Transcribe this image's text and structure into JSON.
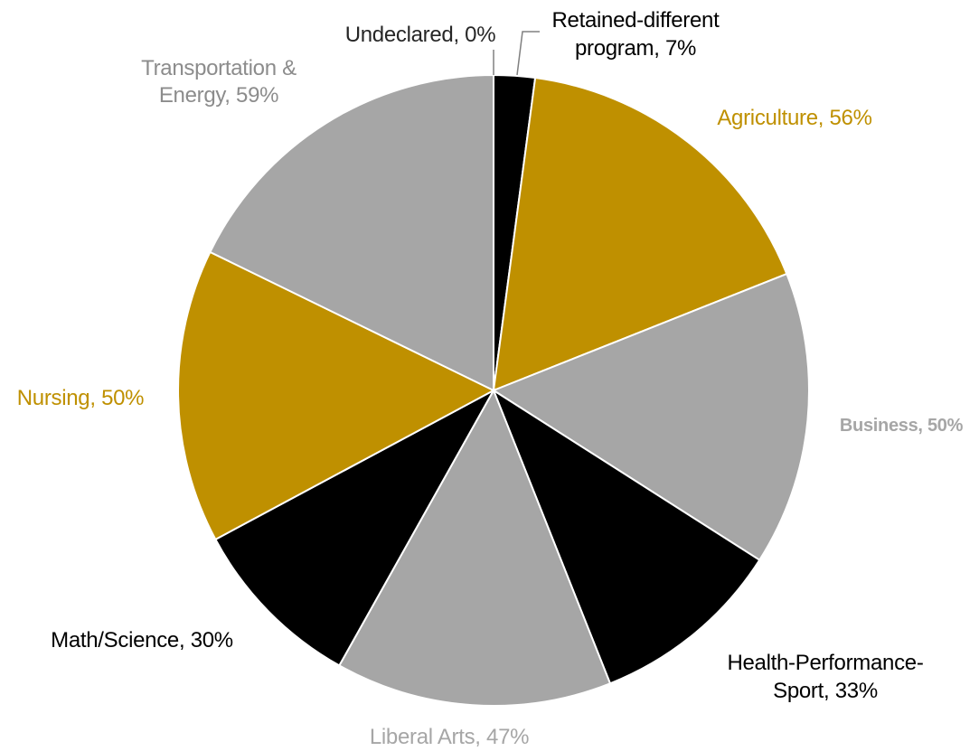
{
  "chart_data": {
    "type": "pie",
    "title": "",
    "slices": [
      {
        "name": "Undeclared",
        "value": 0,
        "label": "Undeclared, 0%",
        "color": "#000000",
        "label_color": "#262626"
      },
      {
        "name": "Retained-different program",
        "value": 7,
        "label": "Retained-different program, 7%",
        "color": "#000000",
        "label_color": "#000000"
      },
      {
        "name": "Agriculture",
        "value": 56,
        "label": "Agriculture, 56%",
        "color": "#BF9000",
        "label_color": "#BF9000"
      },
      {
        "name": "Business",
        "value": 50,
        "label": "Business, 50%",
        "color": "#A6A6A6",
        "label_color": "#A6A6A6"
      },
      {
        "name": "Health-Performance-Sport",
        "value": 33,
        "label": "Health-Performance-Sport, 33%",
        "color": "#000000",
        "label_color": "#000000"
      },
      {
        "name": "Liberal Arts",
        "value": 47,
        "label": "Liberal Arts, 47%",
        "color": "#A6A6A6",
        "label_color": "#A6A6A6"
      },
      {
        "name": "Math/Science",
        "value": 30,
        "label": "Math/Science, 30%",
        "color": "#000000",
        "label_color": "#000000"
      },
      {
        "name": "Nursing",
        "value": 50,
        "label": "Nursing, 50%",
        "color": "#BF9000",
        "label_color": "#BF9000"
      },
      {
        "name": "Transportation & Energy",
        "value": 59,
        "label": "Transportation & Energy, 59%",
        "color": "#A6A6A6",
        "label_color": "#8C8C8C"
      }
    ],
    "legend": "none",
    "start_angle": "12 o'clock, clockwise",
    "slice_border_color": "#FFFFFF"
  }
}
